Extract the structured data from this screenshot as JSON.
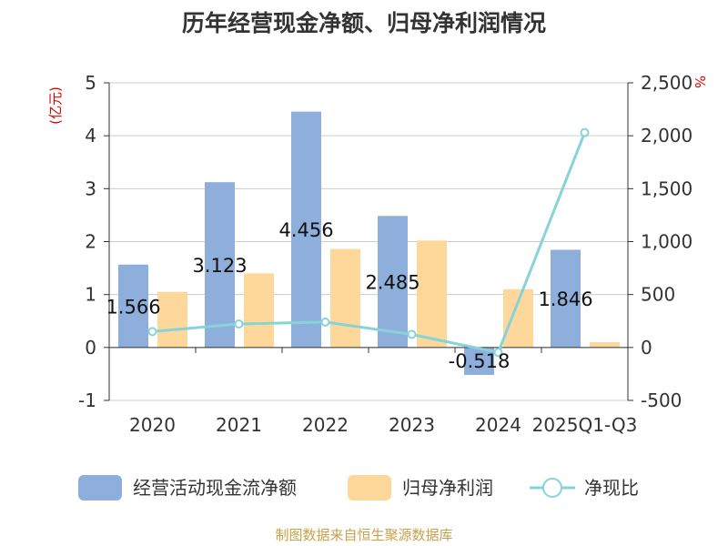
{
  "chart_data": {
    "type": "bar",
    "title": "历年经营现金净额、归母净利润情况",
    "left_unit": "(亿元)",
    "right_unit": "%",
    "categories": [
      "2020",
      "2021",
      "2022",
      "2023",
      "2024",
      "2025Q1-Q3"
    ],
    "left_ylim": [
      -1,
      5
    ],
    "left_ticks": [
      "-1",
      "0",
      "1",
      "2",
      "3",
      "4",
      "5"
    ],
    "right_ylim": [
      -500,
      2500
    ],
    "right_ticks": [
      "-500",
      "0",
      "500",
      "1,000",
      "1,500",
      "2,000",
      "2,500"
    ],
    "series": [
      {
        "name": "经营活动现金流净额",
        "type": "bar",
        "axis": "left",
        "color": "#8eaedb",
        "values": [
          1.566,
          3.123,
          4.456,
          2.485,
          -0.518,
          1.846
        ],
        "labels": [
          "1.566",
          "3.123",
          "4.456",
          "2.485",
          "-0.518",
          "1.846"
        ]
      },
      {
        "name": "归母净利润",
        "type": "bar",
        "axis": "left",
        "color": "#fdd89a",
        "values": [
          1.05,
          1.4,
          1.86,
          2.02,
          1.1,
          0.1
        ]
      },
      {
        "name": "净现比",
        "type": "line",
        "axis": "right",
        "color": "#86d3d9",
        "values": [
          150,
          222,
          240,
          123,
          -47,
          2030
        ]
      }
    ],
    "legend": [
      "经营活动现金流净额",
      "归母净利润",
      "净现比"
    ],
    "legend_position": "bottom",
    "grid": true
  },
  "source": "制图数据来自恒生聚源数据库"
}
